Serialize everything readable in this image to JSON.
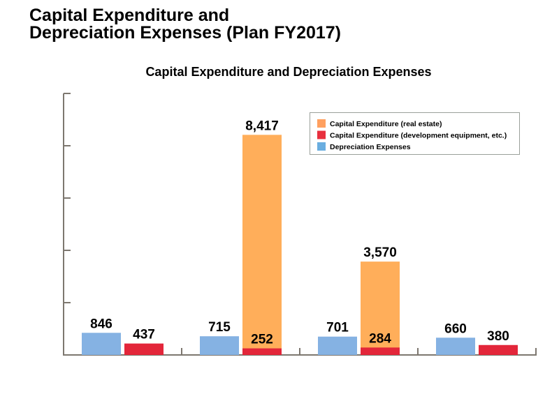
{
  "page": {
    "title_line1": "Capital Expenditure and",
    "title_line2": "Depreciation Expenses (Plan FY2017)"
  },
  "chart_data": {
    "type": "bar",
    "title": "Capital Expenditure and Depreciation Expenses",
    "xlabel": "",
    "ylabel": "",
    "categories": [
      "",
      "",
      "",
      ""
    ],
    "ylim": [
      0,
      10000
    ],
    "y_ticks": [
      0,
      2000,
      4000,
      6000,
      8000,
      10000
    ],
    "y_tick_labels_shown": false,
    "grid": false,
    "legend_position": "top-right",
    "series": [
      {
        "name": "Capital Expenditure (real estate)",
        "color": "#ffae5a",
        "values": [
          null,
          8417,
          3570,
          null
        ],
        "labels": [
          "",
          "8,417",
          "3,570",
          ""
        ]
      },
      {
        "name": "Capital Expenditure (development equipment, etc.)",
        "color": "#e3263a",
        "values": [
          437,
          252,
          284,
          380
        ],
        "labels": [
          "437",
          "252",
          "284",
          "380"
        ]
      },
      {
        "name": "Depreciation Expenses",
        "color": "#85b2e3",
        "values": [
          846,
          715,
          701,
          660
        ],
        "labels": [
          "846",
          "715",
          "701",
          "660"
        ]
      }
    ],
    "legend_swatch_colors": [
      "#ffa060",
      "#e8303e",
      "#6aaee0"
    ],
    "axis_color": "#7d776f"
  }
}
